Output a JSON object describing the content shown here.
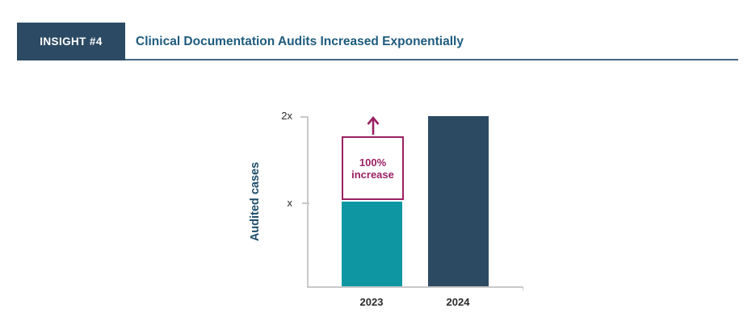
{
  "header": {
    "badge": "INSIGHT #4",
    "title": "Clinical Documentation Audits Increased Exponentially"
  },
  "chart_data": {
    "type": "bar",
    "title": "",
    "xlabel": "",
    "ylabel": "Audited cases",
    "categories": [
      "2023",
      "2024"
    ],
    "values": [
      1,
      2
    ],
    "value_labels": [
      "x",
      "2x"
    ],
    "ylim": [
      0,
      2
    ],
    "yticks": [
      {
        "value": 2,
        "label": "2x"
      },
      {
        "value": 1,
        "label": "x"
      }
    ],
    "grid": false,
    "legend": "none",
    "bar_colors": [
      "#0e97a3",
      "#2c4a62"
    ],
    "annotation": {
      "line1": "100%",
      "line2": "increase",
      "icon": "up-arrow",
      "color": "#9a2164",
      "attached_to": "2023"
    }
  },
  "colors": {
    "badge_bg": "#2c4a63",
    "badge_text": "#ffffff",
    "title_text": "#1e5b7e",
    "header_rule": "#47677e",
    "axis": "#c9c9c9",
    "tick_text": "#2b2b2b",
    "ylabel_text": "#1f4e6b",
    "background": "#ffffff"
  }
}
